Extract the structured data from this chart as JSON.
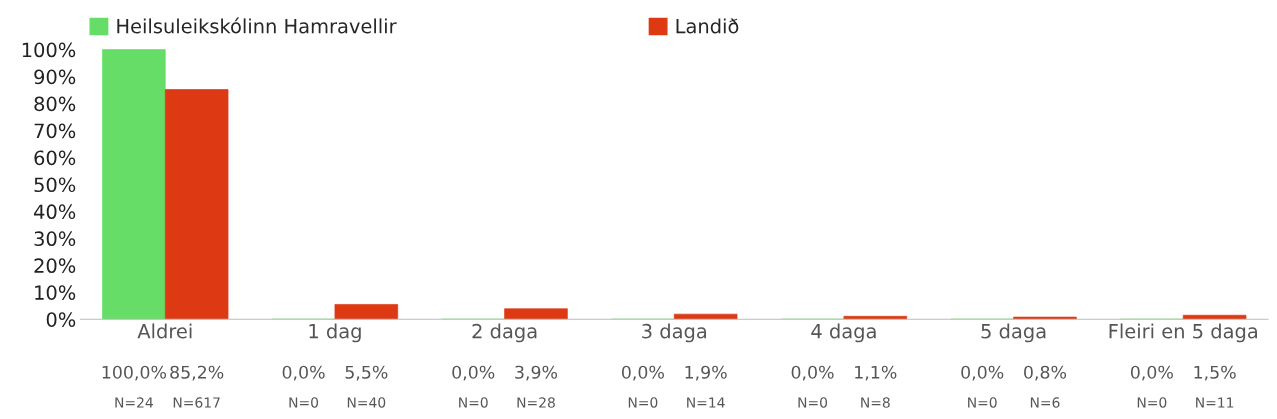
{
  "chart_data": {
    "type": "bar",
    "categories": [
      "Aldrei",
      "1 dag",
      "2 daga",
      "3 daga",
      "4 daga",
      "5 daga",
      "Fleiri en 5 daga"
    ],
    "series": [
      {
        "name": "Heilsuleikskólinn Hamravellir",
        "color": "#66dd66",
        "values": [
          100.0,
          0.0,
          0.0,
          0.0,
          0.0,
          0.0,
          0.0
        ],
        "value_labels": [
          "100,0%\nN=24",
          "0,0%\nN=0",
          "0,0%\nN=0",
          "0,0%\nN=0",
          "0,0%\nN=0",
          "0,0%\nN=0",
          "0,0%\nN=0"
        ]
      },
      {
        "name": "Landið",
        "color": "#dd3a14",
        "values": [
          85.2,
          5.5,
          3.9,
          1.9,
          1.1,
          0.8,
          1.5
        ],
        "value_labels": [
          "85,2%\nN=617",
          "5,5%\nN=40",
          "3,9%\nN=28",
          "1,9%\nN=14",
          "1,1%\nN=8",
          "0,8%\nN=6",
          "1,5%\nN=11"
        ]
      }
    ],
    "ylim": [
      0,
      101
    ],
    "yticks": [
      {
        "value": 0,
        "label": "0%"
      },
      {
        "value": 10,
        "label": "10%"
      },
      {
        "value": 20,
        "label": "20%"
      },
      {
        "value": 30,
        "label": "30%"
      },
      {
        "value": 40,
        "label": "40%"
      },
      {
        "value": 50,
        "label": "50%"
      },
      {
        "value": 60,
        "label": "60%"
      },
      {
        "value": 70,
        "label": "70%"
      },
      {
        "value": 80,
        "label": "80%"
      },
      {
        "value": 90,
        "label": "90%"
      },
      {
        "value": 100,
        "label": "100%"
      }
    ],
    "grid": false,
    "legend": "top"
  }
}
